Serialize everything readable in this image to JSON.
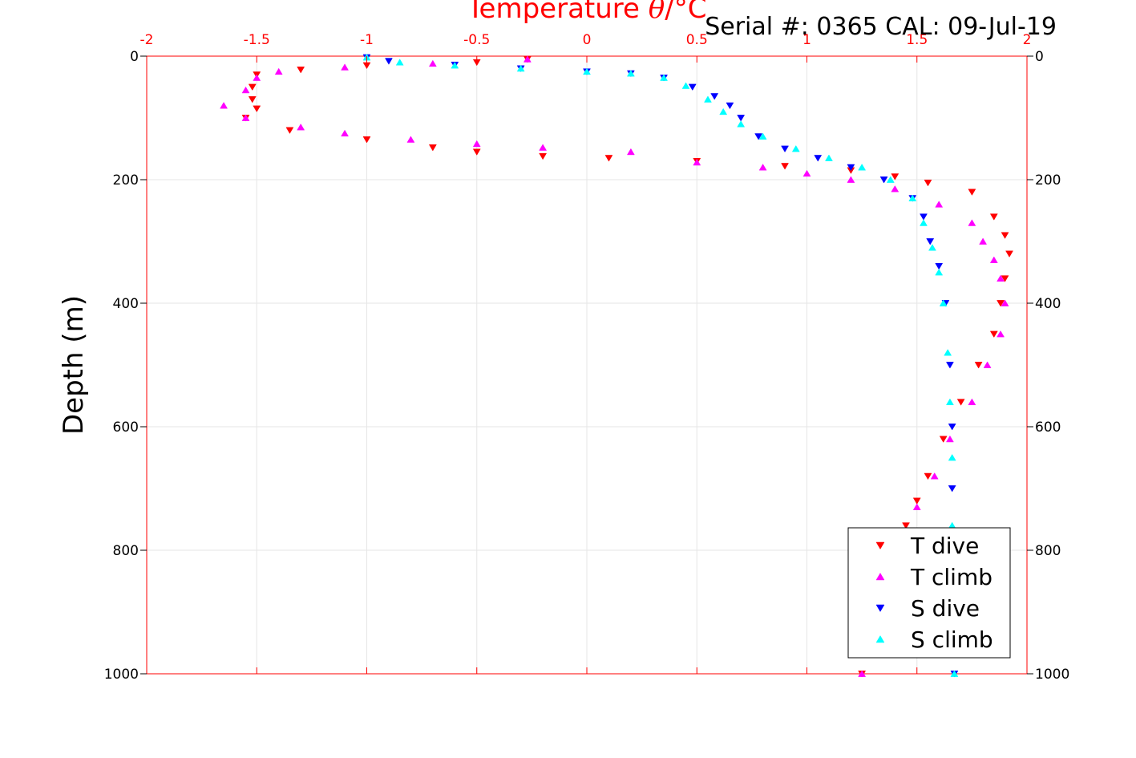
{
  "header": {
    "serial_text": "Serial #: 0365  CAL: 09-Jul-19"
  },
  "chart_data": {
    "type": "scatter",
    "title": "Temperature θ/°C",
    "title_prefix": "Temperature ",
    "title_symbol": "θ",
    "title_suffix": "/°C",
    "xlabel": "Temperature θ/°C",
    "ylabel": "Depth (m)",
    "xlim": [
      -2,
      2
    ],
    "ylim": [
      0,
      1000
    ],
    "y_reversed": true,
    "grid": true,
    "x_axis_position": "top",
    "x_ticks": [
      {
        "value": -2,
        "label": "-2"
      },
      {
        "value": -1.5,
        "label": "-1.5"
      },
      {
        "value": -1,
        "label": "-1"
      },
      {
        "value": -0.5,
        "label": "-0.5"
      },
      {
        "value": 0,
        "label": "0"
      },
      {
        "value": 0.5,
        "label": "0.5"
      },
      {
        "value": 1,
        "label": "1"
      },
      {
        "value": 1.5,
        "label": "1.5"
      },
      {
        "value": 2,
        "label": "2"
      }
    ],
    "y_ticks": [
      {
        "value": 0,
        "label": "0"
      },
      {
        "value": 200,
        "label": "200"
      },
      {
        "value": 400,
        "label": "400"
      },
      {
        "value": 600,
        "label": "600"
      },
      {
        "value": 800,
        "label": "800"
      },
      {
        "value": 1000,
        "label": "1000"
      }
    ],
    "legend_position": "bottom-right",
    "series": [
      {
        "name": "T dive",
        "color": "#ff0000",
        "marker": "triangle-down",
        "x": [
          -0.27,
          -0.5,
          -1.0,
          -1.3,
          -1.5,
          -1.52,
          -1.52,
          -1.5,
          -1.55,
          -1.35,
          -1.0,
          -0.7,
          -0.5,
          -0.2,
          0.1,
          0.5,
          0.9,
          1.2,
          1.4,
          1.55,
          1.75,
          1.85,
          1.9,
          1.92,
          1.9,
          1.88,
          1.85,
          1.78,
          1.7,
          1.62,
          1.55,
          1.5,
          1.45,
          1.38,
          1.3,
          1.27,
          1.25
        ],
        "y": [
          5,
          10,
          15,
          22,
          30,
          50,
          70,
          85,
          100,
          120,
          135,
          148,
          155,
          162,
          165,
          170,
          178,
          185,
          195,
          205,
          220,
          260,
          290,
          320,
          360,
          400,
          450,
          500,
          560,
          620,
          680,
          720,
          760,
          820,
          900,
          960,
          1000
        ]
      },
      {
        "name": "T climb",
        "color": "#ff00ff",
        "marker": "triangle-up",
        "x": [
          -0.27,
          -0.7,
          -1.1,
          -1.4,
          -1.5,
          -1.55,
          -1.65,
          -1.55,
          -1.3,
          -1.1,
          -0.8,
          -0.5,
          -0.2,
          0.2,
          0.5,
          0.8,
          1.0,
          1.2,
          1.4,
          1.6,
          1.75,
          1.8,
          1.85,
          1.88,
          1.9,
          1.88,
          1.82,
          1.75,
          1.65,
          1.58,
          1.5,
          1.45,
          1.38,
          1.32,
          1.28,
          1.25
        ],
        "y": [
          5,
          12,
          18,
          25,
          35,
          55,
          80,
          100,
          115,
          125,
          135,
          142,
          148,
          155,
          172,
          180,
          190,
          200,
          215,
          240,
          270,
          300,
          330,
          360,
          400,
          450,
          500,
          560,
          620,
          680,
          730,
          780,
          840,
          900,
          960,
          1000
        ]
      },
      {
        "name": "S dive",
        "color": "#0000ff",
        "marker": "triangle-down",
        "x": [
          -1.0,
          -0.9,
          -0.6,
          -0.3,
          0.0,
          0.2,
          0.35,
          0.48,
          0.58,
          0.65,
          0.7,
          0.78,
          0.9,
          1.05,
          1.2,
          1.35,
          1.48,
          1.53,
          1.56,
          1.6,
          1.63,
          1.65,
          1.66,
          1.66,
          1.66,
          1.67,
          1.67
        ],
        "y": [
          2,
          8,
          14,
          20,
          25,
          28,
          35,
          50,
          65,
          80,
          100,
          130,
          150,
          165,
          180,
          200,
          230,
          260,
          300,
          340,
          400,
          500,
          600,
          700,
          800,
          900,
          1000
        ]
      },
      {
        "name": "S climb",
        "color": "#00ffff",
        "marker": "triangle-up",
        "x": [
          -1.0,
          -0.85,
          -0.6,
          -0.3,
          0.0,
          0.2,
          0.35,
          0.45,
          0.55,
          0.62,
          0.7,
          0.8,
          0.95,
          1.1,
          1.25,
          1.38,
          1.48,
          1.53,
          1.57,
          1.6,
          1.62,
          1.64,
          1.65,
          1.66,
          1.66,
          1.66,
          1.67
        ],
        "y": [
          2,
          10,
          15,
          20,
          25,
          28,
          35,
          48,
          70,
          90,
          110,
          130,
          150,
          165,
          180,
          200,
          230,
          270,
          310,
          350,
          400,
          480,
          560,
          650,
          760,
          880,
          1000
        ]
      }
    ]
  }
}
